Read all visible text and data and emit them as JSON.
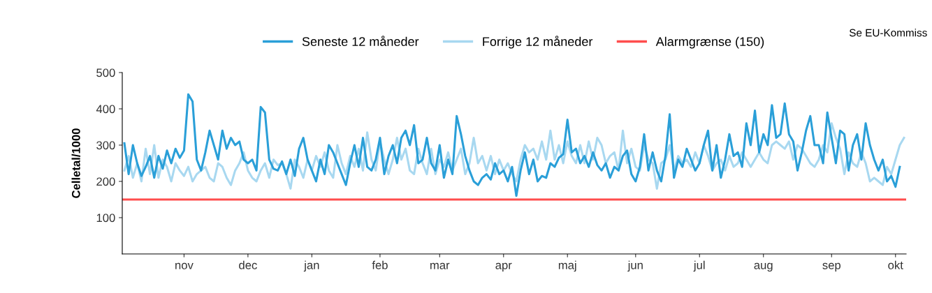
{
  "chart_data": {
    "type": "line",
    "ylabel": "Celletal/1000",
    "ylim": [
      0,
      500
    ],
    "yticks": [
      100,
      200,
      300,
      400,
      500
    ],
    "categories": [
      null,
      null,
      null,
      null,
      null,
      null,
      null,
      null,
      null,
      null,
      null,
      null,
      null,
      null,
      "nov",
      null,
      null,
      null,
      null,
      null,
      null,
      null,
      null,
      null,
      null,
      null,
      null,
      null,
      null,
      "dec",
      null,
      null,
      null,
      null,
      null,
      null,
      null,
      null,
      null,
      null,
      null,
      null,
      null,
      null,
      "jan",
      null,
      null,
      null,
      null,
      null,
      null,
      null,
      null,
      null,
      null,
      null,
      null,
      null,
      null,
      null,
      "feb",
      null,
      null,
      null,
      null,
      null,
      null,
      null,
      null,
      null,
      null,
      null,
      null,
      null,
      "mar",
      null,
      null,
      null,
      null,
      null,
      null,
      null,
      null,
      null,
      null,
      null,
      null,
      null,
      null,
      "apr",
      null,
      null,
      null,
      null,
      null,
      null,
      null,
      null,
      null,
      null,
      null,
      null,
      null,
      null,
      "maj",
      null,
      null,
      null,
      null,
      null,
      null,
      null,
      null,
      null,
      null,
      null,
      null,
      null,
      null,
      null,
      "jun",
      null,
      null,
      null,
      null,
      null,
      null,
      null,
      null,
      null,
      null,
      null,
      null,
      null,
      null,
      "jul",
      null,
      null,
      null,
      null,
      null,
      null,
      null,
      null,
      null,
      null,
      null,
      null,
      null,
      null,
      "aug",
      null,
      null,
      null,
      null,
      null,
      null,
      null,
      null,
      null,
      null,
      null,
      null,
      null,
      null,
      null,
      "sep",
      null,
      null,
      null,
      null,
      null,
      null,
      null,
      null,
      null,
      null,
      null,
      null,
      null,
      null,
      "okt",
      null,
      null
    ],
    "legend": "top",
    "grid": false,
    "ref_lines": [
      {
        "axis": "y",
        "value": 150,
        "label": "Alarmgrænse (150)",
        "color": "#ff4d4d"
      }
    ],
    "annotations": [
      "Se EU-Kommiss"
    ],
    "series": [
      {
        "name": "Forrige 12 måneder",
        "color": "#a8d8f0",
        "values": [
          230,
          270,
          210,
          250,
          200,
          290,
          220,
          300,
          210,
          260,
          240,
          200,
          250,
          230,
          215,
          240,
          200,
          220,
          230,
          240,
          210,
          200,
          250,
          240,
          210,
          190,
          230,
          250,
          280,
          230,
          210,
          200,
          230,
          250,
          210,
          260,
          245,
          250,
          220,
          180,
          260,
          240,
          210,
          260,
          230,
          270,
          240,
          280,
          230,
          210,
          300,
          250,
          220,
          270,
          240,
          290,
          230,
          335,
          260,
          230,
          310,
          260,
          220,
          260,
          320,
          260,
          290,
          230,
          220,
          290,
          250,
          220,
          290,
          220,
          260,
          240,
          280,
          230,
          260,
          290,
          220,
          250,
          320,
          250,
          270,
          230,
          270,
          220,
          260,
          230,
          250,
          220,
          200,
          260,
          300,
          280,
          290,
          260,
          310,
          260,
          340,
          260,
          300,
          250,
          310,
          270,
          250,
          300,
          250,
          310,
          260,
          320,
          300,
          250,
          270,
          280,
          230,
          340,
          250,
          290,
          240,
          230,
          300,
          260,
          250,
          180,
          250,
          260,
          300,
          230,
          270,
          250,
          260,
          240,
          280,
          250,
          300,
          270,
          230,
          250,
          260,
          230,
          270,
          240,
          250,
          280,
          260,
          240,
          260,
          280,
          260,
          250,
          300,
          310,
          300,
          290,
          310,
          260,
          300,
          290,
          270,
          250,
          240,
          260,
          300,
          280,
          360,
          320,
          290,
          220,
          280,
          250,
          240,
          280,
          250,
          200,
          210,
          200,
          190,
          240,
          220,
          260,
          300,
          320
        ]
      },
      {
        "name": "Seneste 12 måneder",
        "color": "#2a9fd8",
        "values": [
          305,
          220,
          300,
          250,
          215,
          240,
          270,
          210,
          270,
          235,
          285,
          250,
          290,
          265,
          285,
          440,
          420,
          260,
          230,
          280,
          340,
          300,
          260,
          340,
          290,
          320,
          300,
          310,
          260,
          250,
          260,
          230,
          405,
          390,
          260,
          235,
          230,
          255,
          220,
          260,
          215,
          290,
          320,
          260,
          230,
          200,
          260,
          220,
          300,
          280,
          250,
          220,
          190,
          250,
          300,
          240,
          320,
          240,
          230,
          260,
          320,
          220,
          270,
          300,
          250,
          320,
          340,
          300,
          355,
          250,
          260,
          320,
          250,
          230,
          300,
          210,
          260,
          220,
          380,
          330,
          270,
          230,
          200,
          190,
          210,
          220,
          205,
          250,
          220,
          230,
          200,
          240,
          160,
          230,
          280,
          220,
          260,
          200,
          215,
          210,
          250,
          240,
          265,
          275,
          370,
          280,
          290,
          250,
          270,
          240,
          280,
          245,
          230,
          250,
          210,
          240,
          230,
          270,
          285,
          220,
          200,
          240,
          330,
          230,
          280,
          230,
          200,
          270,
          385,
          210,
          260,
          240,
          290,
          260,
          230,
          250,
          300,
          340,
          230,
          300,
          210,
          260,
          330,
          270,
          280,
          240,
          360,
          300,
          395,
          280,
          330,
          300,
          410,
          320,
          330,
          415,
          330,
          310,
          230,
          280,
          340,
          380,
          300,
          300,
          250,
          390,
          320,
          250,
          340,
          330,
          230,
          300,
          330,
          260,
          360,
          300,
          260,
          230,
          260,
          200,
          215,
          185,
          240,
          null
        ]
      }
    ]
  }
}
